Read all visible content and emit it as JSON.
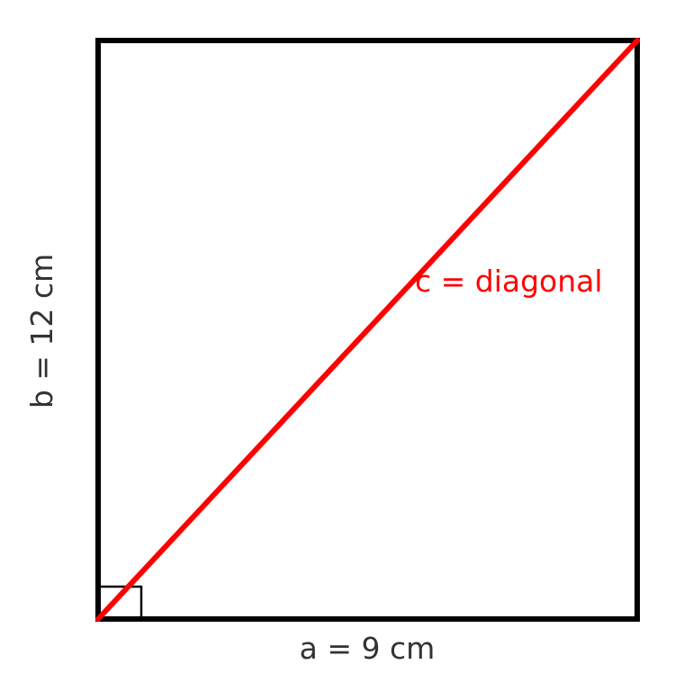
{
  "labels": {
    "side_a": "a = 9 cm",
    "side_b": "b = 12 cm",
    "diagonal": "c = diagonal"
  },
  "colors": {
    "outline": "#000000",
    "diagonal": "#ff0000",
    "label_text": "#333333",
    "diagonal_label": "#ff0000",
    "background": "#ffffff"
  }
}
